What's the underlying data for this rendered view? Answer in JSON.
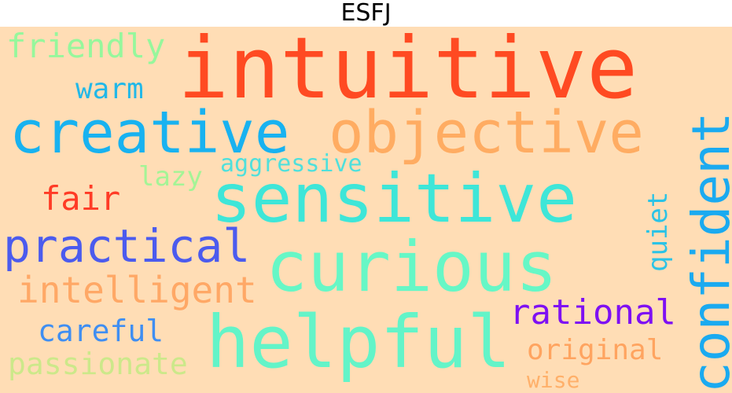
{
  "title": "ESFJ",
  "colors": {
    "background": "#ffddb5"
  },
  "words": {
    "intuitive": {
      "text": "intuitive",
      "color": "#ff4a22"
    },
    "sensitive": {
      "text": "sensitive",
      "color": "#3ee6d8"
    },
    "creative": {
      "text": "creative",
      "color": "#18b2f0"
    },
    "objective": {
      "text": "objective",
      "color": "#ffac62"
    },
    "confident": {
      "text": "confident",
      "color": "#1aaaf0"
    },
    "curious": {
      "text": "curious",
      "color": "#66f7c6"
    },
    "helpful": {
      "text": "helpful",
      "color": "#63f4c8"
    },
    "practical": {
      "text": "practical",
      "color": "#4b5bee"
    },
    "friendly": {
      "text": "friendly",
      "color": "#96f79c"
    },
    "warm": {
      "text": "warm",
      "color": "#21b8e8"
    },
    "aggressive": {
      "text": "aggressive",
      "color": "#4fe0dc"
    },
    "lazy": {
      "text": "lazy",
      "color": "#a4f496"
    },
    "fair": {
      "text": "fair",
      "color": "#ff3b26"
    },
    "quiet": {
      "text": "quiet",
      "color": "#2bc3e6"
    },
    "intelligent": {
      "text": "intelligent",
      "color": "#ffa866"
    },
    "rational": {
      "text": "rational",
      "color": "#7e10f3"
    },
    "careful": {
      "text": "careful",
      "color": "#3f8ef2"
    },
    "original": {
      "text": "original",
      "color": "#ffa460"
    },
    "passionate": {
      "text": "passionate",
      "color": "#cce88a"
    },
    "wise": {
      "text": "wise",
      "color": "#ffb06a"
    }
  }
}
